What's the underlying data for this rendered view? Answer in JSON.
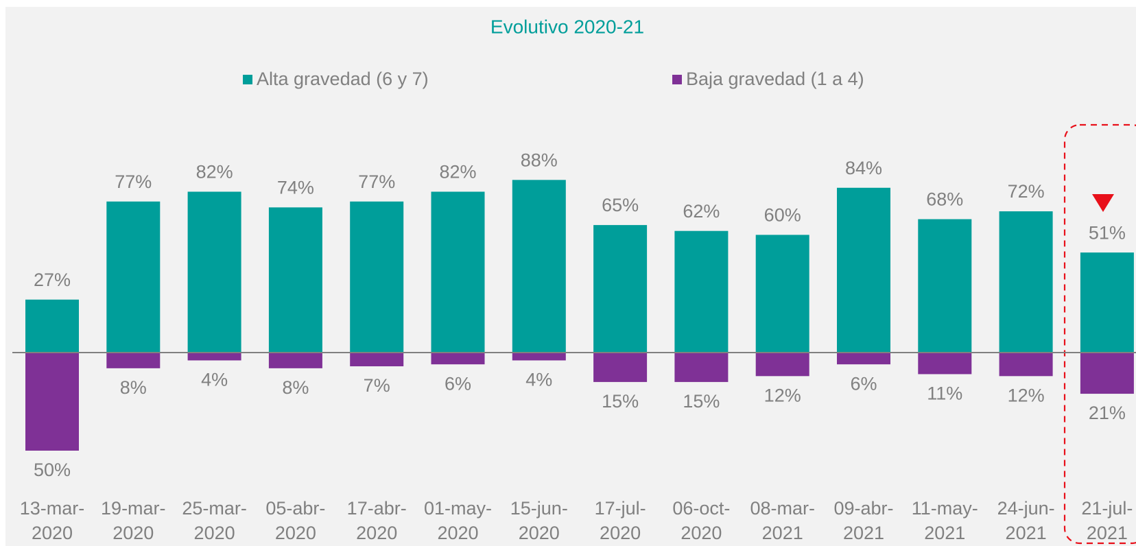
{
  "chart_data": {
    "type": "bar",
    "title": "Evolutivo 2020-21",
    "categories": [
      [
        "13-mar-",
        "2020"
      ],
      [
        "19-mar-",
        "2020"
      ],
      [
        "25-mar-",
        "2020"
      ],
      [
        "05-abr-",
        "2020"
      ],
      [
        "17-abr-",
        "2020"
      ],
      [
        "01-may-",
        "2020"
      ],
      [
        "15-jun-",
        "2020"
      ],
      [
        "17-jul-",
        "2020"
      ],
      [
        "06-oct-",
        "2020"
      ],
      [
        "08-mar-",
        "2021"
      ],
      [
        "09-abr-",
        "2021"
      ],
      [
        "11-may-",
        "2021"
      ],
      [
        "24-jun-",
        "2021"
      ],
      [
        "21-jul-",
        "2021"
      ]
    ],
    "series": [
      {
        "name": "Alta gravedad (6 y 7)",
        "color": "#009e9a",
        "values": [
          27,
          77,
          82,
          74,
          77,
          82,
          88,
          65,
          62,
          60,
          84,
          68,
          72,
          51
        ],
        "value_labels": [
          "27%",
          "77%",
          "82%",
          "74%",
          "77%",
          "82%",
          "88%",
          "65%",
          "62%",
          "60%",
          "84%",
          "68%",
          "72%",
          "51%"
        ]
      },
      {
        "name": "Baja gravedad (1 a 4)",
        "color": "#7f3196",
        "values": [
          50,
          8,
          4,
          8,
          7,
          6,
          4,
          15,
          15,
          12,
          6,
          11,
          12,
          21
        ],
        "value_labels": [
          "50%",
          "8%",
          "4%",
          "8%",
          "7%",
          "6%",
          "4%",
          "15%",
          "15%",
          "12%",
          "6%",
          "11%",
          "12%",
          "21%"
        ]
      }
    ]
  }
}
